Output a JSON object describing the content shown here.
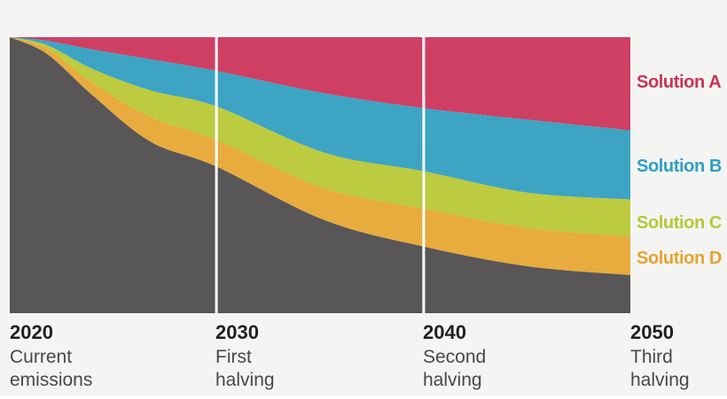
{
  "colors": {
    "background": "#f4f4f3",
    "year_text": "#231f20",
    "caption_text": "#48484a",
    "gridline": "#ffffff",
    "solution_a": "#cf3f63",
    "solution_b": "#3da4c4",
    "solution_c": "#bccb3f",
    "solution_d": "#e8ab3e",
    "remaining_emissions": "#585657"
  },
  "legend": {
    "items": [
      {
        "label": "Solution A",
        "color": "#c93354"
      },
      {
        "label": "Solution B",
        "color": "#2f9fc2"
      },
      {
        "label": "Solution C",
        "color": "#b5c838"
      },
      {
        "label": "Solution D",
        "color": "#e6a42e"
      }
    ]
  },
  "x_axis": {
    "ticks": [
      {
        "year": "2020",
        "caption_lines": [
          "Current",
          "emissions"
        ]
      },
      {
        "year": "2030",
        "caption_lines": [
          "First",
          "halving"
        ]
      },
      {
        "year": "2040",
        "caption_lines": [
          "Second",
          "halving"
        ]
      },
      {
        "year": "2050",
        "caption_lines": [
          "Third",
          "halving"
        ]
      }
    ]
  },
  "chart_data": {
    "type": "area",
    "subtype": "stacked-area, constant total, top-anchored bands",
    "title": "",
    "xlabel": "",
    "ylabel": "",
    "x_axis_years": [
      "2020",
      "2030",
      "2040",
      "2050"
    ],
    "decade_positions_pct": [
      0,
      33.3,
      66.7,
      100
    ],
    "gridlines_pct": [
      33.3,
      66.7
    ],
    "gridline_color": "#ffffff",
    "legend_position": "right",
    "ylim_pct": [
      0,
      100
    ],
    "unit": "percent of 2020 emissions (total band height = 100%)",
    "x_pct": [
      0,
      6,
      13.4,
      22.7,
      33.3,
      50.6,
      66.7,
      83.4,
      100
    ],
    "series": [
      {
        "name": "Solution A",
        "color": "#cf3f63",
        "values": [
          0,
          1.3,
          4.5,
          8.0,
          12.2,
          20.3,
          25.7,
          29.9,
          33.8
        ]
      },
      {
        "name": "Solution B",
        "color": "#3da4c4",
        "values": [
          0,
          1.6,
          7.1,
          11.3,
          12.9,
          21.5,
          22.9,
          26.4,
          25.0
        ]
      },
      {
        "name": "Solution C",
        "color": "#bccb3f",
        "values": [
          0,
          1.3,
          5.1,
          9.6,
          12.2,
          12.9,
          13.5,
          12.8,
          13.5
        ]
      },
      {
        "name": "Solution D",
        "color": "#e8ab3e",
        "values": [
          0,
          1.9,
          4.5,
          9.0,
          9.6,
          11.5,
          13.8,
          13.9,
          13.9
        ]
      },
      {
        "name": "Remaining emissions",
        "color": "#585657",
        "values": [
          100,
          93.9,
          78.8,
          62.1,
          53.1,
          33.8,
          24.1,
          17.0,
          13.8
        ]
      }
    ],
    "remaining_emissions_at_decades_pct": [
      100,
      53,
      24,
      14
    ]
  }
}
